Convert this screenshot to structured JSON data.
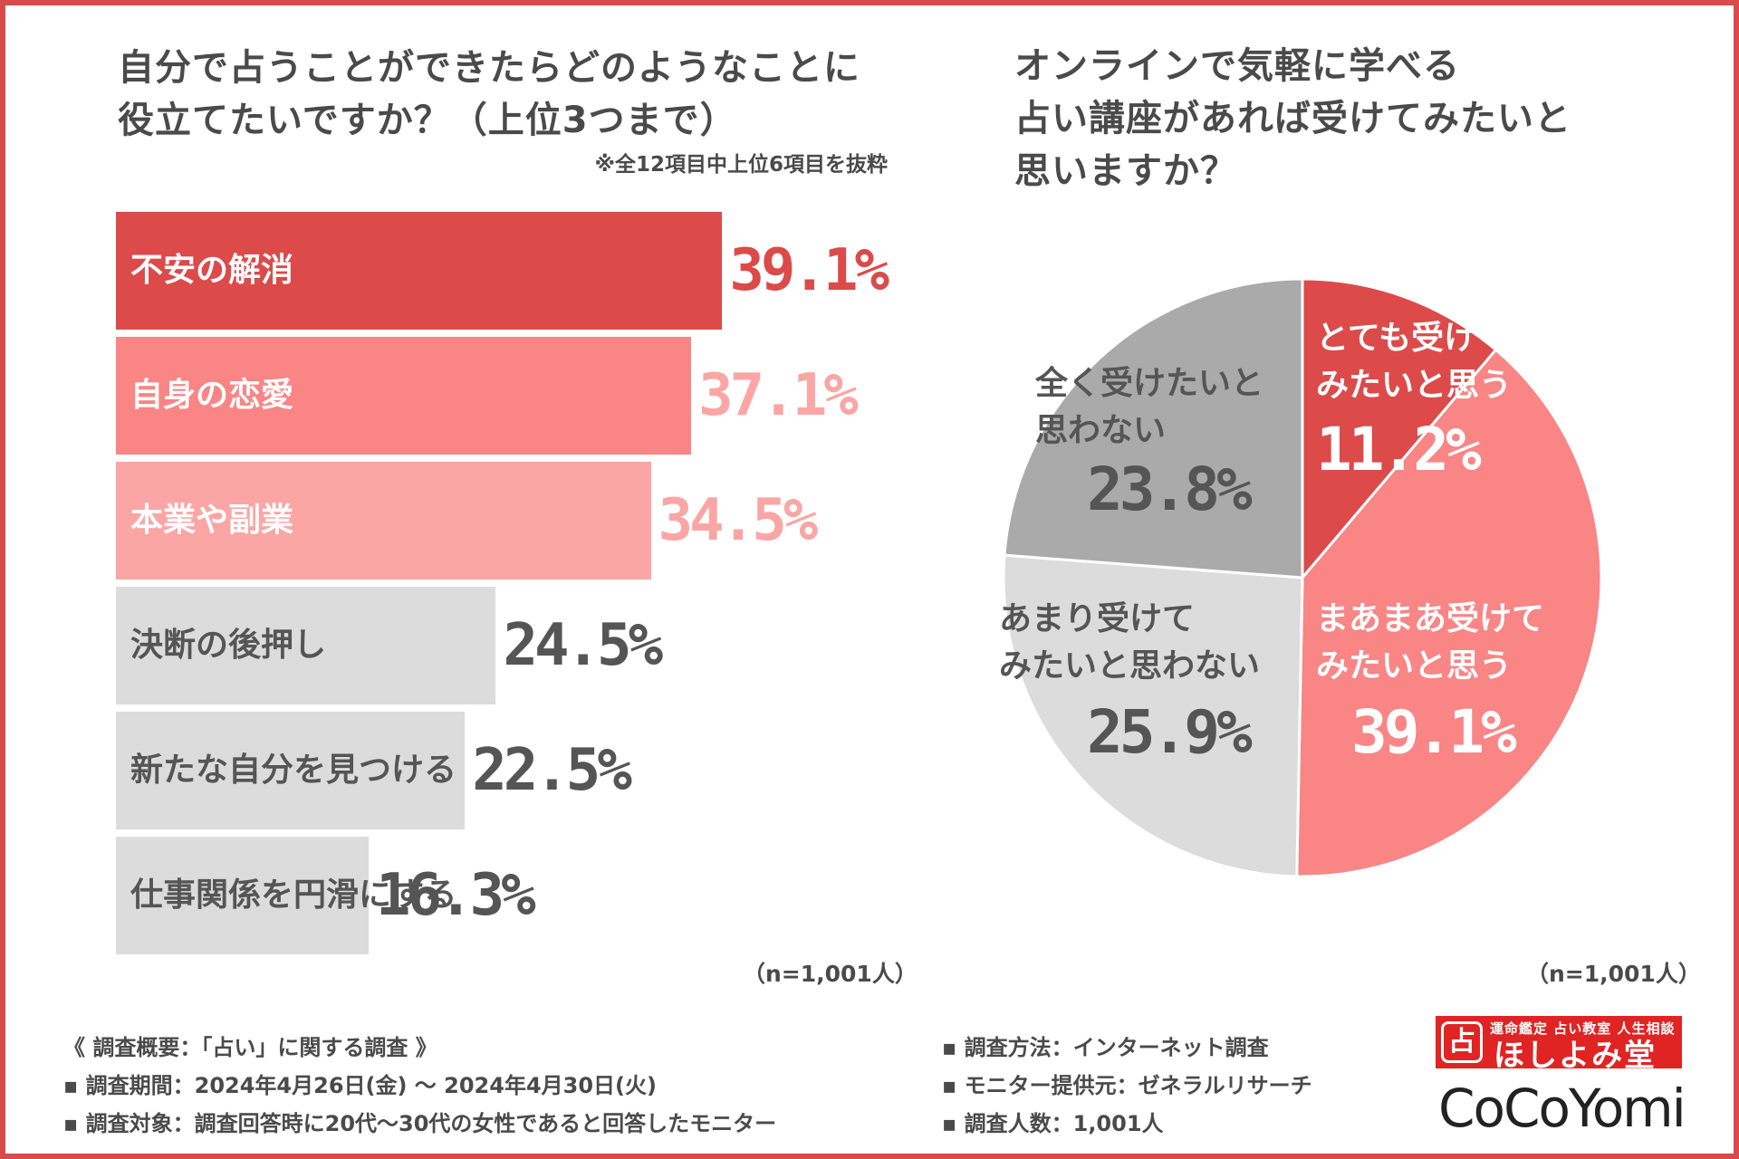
{
  "left_chart": {
    "title_line1": "自分で占うことができたらどのようなことに",
    "title_line2": "役立てたいですか？（上位3つまで）",
    "note": "※全12項目中上位6項目を抜粋",
    "sample": "（n=1,001人）"
  },
  "right_chart": {
    "title_line1": "オンラインで気軽に学べる",
    "title_line2": "占い講座があれば受けてみたいと",
    "title_line3": "思いますか？",
    "sample": "（n=1,001人）"
  },
  "footer": {
    "summary": "《 調査概要：「占い」に関する調査 》",
    "period": "▪ 調査期間：2024年4月26日(金) ～ 2024年4月30日(火)",
    "target": "▪ 調査対象：調査回答時に20代～30代の女性であると回答したモニター",
    "method": "▪ 調査方法：インターネット調査",
    "provider": "▪ モニター提供元：ゼネラルリサーチ",
    "count": "▪ 調査人数：1,001人"
  },
  "logo": {
    "mark": "占",
    "tagline": "運命鑑定 占い教室 人生相談",
    "name": "ほしよみ堂",
    "brand": "CoCoYomi"
  },
  "colors": {
    "frame": "#d94a4a",
    "red": "#dc4a4a",
    "pink": "#f98585",
    "light_pink": "#fba5a5",
    "light_gray": "#dcdcdc",
    "mid_gray": "#aaaaaa",
    "text_gray": "#555555"
  },
  "chart_data": [
    {
      "type": "bar",
      "orientation": "horizontal",
      "title": "自分で占うことができたらどのようなことに役立てたいですか？（上位3つまで）",
      "categories": [
        "不安の解消",
        "自身の恋愛",
        "本業や副業",
        "決断の後押し",
        "新たな自分を見つける",
        "仕事関係を円滑にする"
      ],
      "values": [
        39.1,
        37.1,
        34.5,
        24.5,
        22.5,
        16.3
      ],
      "value_labels": [
        "39.1%",
        "37.1%",
        "34.5%",
        "24.5%",
        "22.5%",
        "16.3%"
      ],
      "xlim": [
        0,
        50
      ],
      "unit": "%"
    },
    {
      "type": "pie",
      "title": "オンラインで気軽に学べる占い講座があれば受けてみたいと思いますか？",
      "slices": [
        {
          "label_lines": [
            "とても受けて",
            "みたいと思う"
          ],
          "value": 11.2,
          "value_label": "11.2%"
        },
        {
          "label_lines": [
            "まあまあ受けて",
            "みたいと思う"
          ],
          "value": 39.1,
          "value_label": "39.1%"
        },
        {
          "label_lines": [
            "あまり受けて",
            "みたいと思わない"
          ],
          "value": 25.9,
          "value_label": "25.9%"
        },
        {
          "label_lines": [
            "全く受けたいと",
            "思わない"
          ],
          "value": 23.8,
          "value_label": "23.8%"
        }
      ]
    }
  ]
}
